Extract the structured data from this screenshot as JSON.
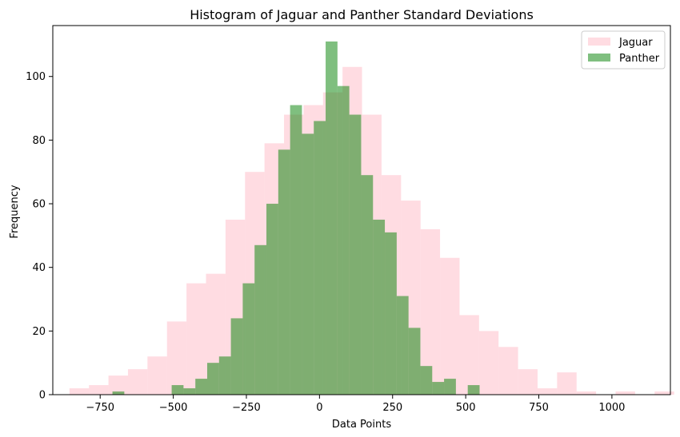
{
  "chart_data": {
    "type": "bar",
    "title": "Histogram of Jaguar and Panther Standard Deviations",
    "xlabel": "Data Points",
    "ylabel": "Frequency",
    "xlim": [
      -912,
      1200
    ],
    "ylim": [
      0,
      116
    ],
    "xticks": [
      -750,
      -500,
      -250,
      0,
      250,
      500,
      750,
      1000
    ],
    "xtick_labels": [
      "−750",
      "−500",
      "−250",
      "0",
      "250",
      "500",
      "750",
      "1000"
    ],
    "yticks": [
      0,
      20,
      40,
      60,
      80,
      100
    ],
    "ytick_labels": [
      "0",
      "20",
      "40",
      "60",
      "80",
      "100"
    ],
    "grid": false,
    "legend_position": "top-right",
    "series": [
      {
        "name": "Jaguar",
        "color": "#ffc0cb",
        "opacity": 0.55,
        "bin_start": -855,
        "bin_width": 66.7,
        "values": [
          2,
          3,
          6,
          8,
          12,
          23,
          35,
          38,
          55,
          70,
          79,
          88,
          91,
          95,
          103,
          88,
          69,
          61,
          52,
          43,
          25,
          20,
          15,
          8,
          2,
          7,
          1,
          0,
          1,
          0,
          1
        ]
      },
      {
        "name": "Panther",
        "color": "#008000",
        "opacity": 0.5,
        "bin_start": -708,
        "bin_width": 40.5,
        "values": [
          1,
          0,
          0,
          0,
          0,
          3,
          2,
          5,
          10,
          12,
          24,
          35,
          47,
          60,
          77,
          91,
          82,
          86,
          111,
          97,
          88,
          69,
          55,
          51,
          31,
          21,
          9,
          4,
          5,
          0,
          3
        ]
      }
    ]
  }
}
